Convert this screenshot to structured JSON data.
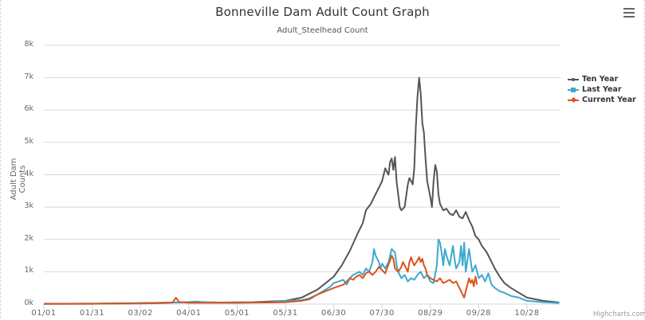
{
  "header": {
    "title": "Bonneville Dam Adult Count Graph",
    "subtitle": "Adult_Steelhead Count",
    "menu_icon": "hamburger-menu-icon"
  },
  "credits": "Highcharts.com",
  "chart_data": {
    "type": "line",
    "title": "Bonneville Dam Adult Count Graph",
    "subtitle": "Adult_Steelhead Count",
    "xlabel": "",
    "ylabel": "Adult Dam Counts",
    "ylim": [
      0,
      8000
    ],
    "y_ticks": [
      "0k",
      "1k",
      "2k",
      "3k",
      "4k",
      "5k",
      "6k",
      "7k",
      "8k"
    ],
    "x_ticks": [
      "01/01",
      "01/31",
      "03/02",
      "04/01",
      "05/01",
      "05/31",
      "06/30",
      "07/30",
      "08/29",
      "09/28",
      "10/28"
    ],
    "x_tick_days": [
      0,
      30,
      60,
      90,
      120,
      150,
      180,
      210,
      240,
      270,
      300
    ],
    "x_range_days": [
      0,
      320
    ],
    "grid": true,
    "legend_position": "right",
    "series": [
      {
        "name": "Ten Year",
        "color": "#555555",
        "points": [
          [
            0,
            10
          ],
          [
            30,
            15
          ],
          [
            60,
            30
          ],
          [
            80,
            50
          ],
          [
            90,
            60
          ],
          [
            110,
            50
          ],
          [
            130,
            60
          ],
          [
            150,
            100
          ],
          [
            160,
            200
          ],
          [
            170,
            450
          ],
          [
            180,
            850
          ],
          [
            185,
            1200
          ],
          [
            190,
            1650
          ],
          [
            195,
            2200
          ],
          [
            198,
            2500
          ],
          [
            200,
            2900
          ],
          [
            203,
            3100
          ],
          [
            205,
            3300
          ],
          [
            208,
            3600
          ],
          [
            210,
            3800
          ],
          [
            212,
            4200
          ],
          [
            214,
            4000
          ],
          [
            215,
            4400
          ],
          [
            216,
            4500
          ],
          [
            217,
            4150
          ],
          [
            218,
            4550
          ],
          [
            219,
            3800
          ],
          [
            220,
            3400
          ],
          [
            221,
            3000
          ],
          [
            222,
            2900
          ],
          [
            224,
            3000
          ],
          [
            226,
            3700
          ],
          [
            227,
            3900
          ],
          [
            228,
            3800
          ],
          [
            229,
            3700
          ],
          [
            230,
            4200
          ],
          [
            231,
            5500
          ],
          [
            232,
            6400
          ],
          [
            233,
            7000
          ],
          [
            234,
            6500
          ],
          [
            235,
            5600
          ],
          [
            236,
            5300
          ],
          [
            237,
            4500
          ],
          [
            238,
            3800
          ],
          [
            240,
            3300
          ],
          [
            241,
            3000
          ],
          [
            242,
            3800
          ],
          [
            243,
            4300
          ],
          [
            244,
            4100
          ],
          [
            245,
            3400
          ],
          [
            246,
            3100
          ],
          [
            248,
            2900
          ],
          [
            250,
            2950
          ],
          [
            252,
            2800
          ],
          [
            254,
            2750
          ],
          [
            256,
            2900
          ],
          [
            258,
            2700
          ],
          [
            260,
            2650
          ],
          [
            262,
            2850
          ],
          [
            264,
            2600
          ],
          [
            266,
            2400
          ],
          [
            268,
            2100
          ],
          [
            270,
            2000
          ],
          [
            272,
            1800
          ],
          [
            275,
            1600
          ],
          [
            278,
            1300
          ],
          [
            280,
            1100
          ],
          [
            283,
            850
          ],
          [
            286,
            650
          ],
          [
            290,
            500
          ],
          [
            295,
            350
          ],
          [
            300,
            200
          ],
          [
            305,
            150
          ],
          [
            310,
            100
          ],
          [
            320,
            50
          ]
        ]
      },
      {
        "name": "Last Year",
        "color": "#3ca9d0",
        "points": [
          [
            0,
            5
          ],
          [
            30,
            10
          ],
          [
            50,
            20
          ],
          [
            65,
            30
          ],
          [
            75,
            40
          ],
          [
            85,
            50
          ],
          [
            95,
            80
          ],
          [
            100,
            60
          ],
          [
            120,
            40
          ],
          [
            140,
            60
          ],
          [
            150,
            100
          ],
          [
            160,
            120
          ],
          [
            165,
            180
          ],
          [
            170,
            300
          ],
          [
            175,
            450
          ],
          [
            178,
            550
          ],
          [
            180,
            650
          ],
          [
            183,
            700
          ],
          [
            186,
            750
          ],
          [
            188,
            600
          ],
          [
            190,
            800
          ],
          [
            192,
            900
          ],
          [
            194,
            950
          ],
          [
            196,
            1000
          ],
          [
            198,
            900
          ],
          [
            200,
            1100
          ],
          [
            202,
            1000
          ],
          [
            204,
            1300
          ],
          [
            205,
            1700
          ],
          [
            206,
            1500
          ],
          [
            207,
            1400
          ],
          [
            208,
            1300
          ],
          [
            209,
            1100
          ],
          [
            210,
            1250
          ],
          [
            212,
            1100
          ],
          [
            214,
            1300
          ],
          [
            216,
            1700
          ],
          [
            218,
            1600
          ],
          [
            219,
            1200
          ],
          [
            220,
            1000
          ],
          [
            222,
            800
          ],
          [
            224,
            900
          ],
          [
            226,
            700
          ],
          [
            228,
            800
          ],
          [
            230,
            750
          ],
          [
            232,
            900
          ],
          [
            234,
            1000
          ],
          [
            236,
            800
          ],
          [
            238,
            900
          ],
          [
            240,
            700
          ],
          [
            242,
            650
          ],
          [
            244,
            1200
          ],
          [
            245,
            2000
          ],
          [
            246,
            1900
          ],
          [
            247,
            1600
          ],
          [
            248,
            1200
          ],
          [
            249,
            1700
          ],
          [
            250,
            1500
          ],
          [
            252,
            1200
          ],
          [
            254,
            1800
          ],
          [
            255,
            1400
          ],
          [
            256,
            1100
          ],
          [
            258,
            1300
          ],
          [
            259,
            1800
          ],
          [
            260,
            1200
          ],
          [
            261,
            1900
          ],
          [
            262,
            1000
          ],
          [
            264,
            1700
          ],
          [
            266,
            1000
          ],
          [
            268,
            1200
          ],
          [
            270,
            800
          ],
          [
            272,
            900
          ],
          [
            274,
            700
          ],
          [
            276,
            950
          ],
          [
            278,
            600
          ],
          [
            280,
            500
          ],
          [
            283,
            400
          ],
          [
            286,
            350
          ],
          [
            290,
            250
          ],
          [
            295,
            200
          ],
          [
            300,
            100
          ],
          [
            305,
            80
          ],
          [
            310,
            60
          ],
          [
            320,
            30
          ]
        ]
      },
      {
        "name": "Current Year",
        "color": "#d9541c",
        "points": [
          [
            0,
            5
          ],
          [
            30,
            10
          ],
          [
            60,
            20
          ],
          [
            75,
            30
          ],
          [
            80,
            50
          ],
          [
            82,
            200
          ],
          [
            84,
            60
          ],
          [
            90,
            40
          ],
          [
            110,
            40
          ],
          [
            140,
            50
          ],
          [
            150,
            60
          ],
          [
            155,
            80
          ],
          [
            160,
            100
          ],
          [
            165,
            150
          ],
          [
            170,
            300
          ],
          [
            175,
            400
          ],
          [
            180,
            500
          ],
          [
            183,
            550
          ],
          [
            186,
            600
          ],
          [
            188,
            700
          ],
          [
            190,
            800
          ],
          [
            192,
            750
          ],
          [
            194,
            850
          ],
          [
            196,
            900
          ],
          [
            198,
            800
          ],
          [
            200,
            950
          ],
          [
            202,
            1000
          ],
          [
            204,
            900
          ],
          [
            206,
            1000
          ],
          [
            208,
            1150
          ],
          [
            210,
            1050
          ],
          [
            212,
            950
          ],
          [
            213,
            1100
          ],
          [
            215,
            1350
          ],
          [
            216,
            1500
          ],
          [
            217,
            1400
          ],
          [
            218,
            1100
          ],
          [
            220,
            1000
          ],
          [
            222,
            1150
          ],
          [
            223,
            1300
          ],
          [
            224,
            1200
          ],
          [
            226,
            1000
          ],
          [
            227,
            1300
          ],
          [
            228,
            1450
          ],
          [
            229,
            1300
          ],
          [
            230,
            1200
          ],
          [
            232,
            1350
          ],
          [
            233,
            1450
          ],
          [
            234,
            1300
          ],
          [
            235,
            1400
          ],
          [
            236,
            1200
          ],
          [
            237,
            1100
          ],
          [
            238,
            900
          ],
          [
            240,
            800
          ],
          [
            242,
            750
          ],
          [
            244,
            700
          ],
          [
            246,
            800
          ],
          [
            248,
            650
          ],
          [
            250,
            700
          ],
          [
            252,
            750
          ],
          [
            254,
            650
          ],
          [
            256,
            700
          ],
          [
            258,
            500
          ],
          [
            260,
            300
          ],
          [
            261,
            200
          ],
          [
            262,
            400
          ],
          [
            264,
            800
          ],
          [
            265,
            650
          ],
          [
            266,
            750
          ],
          [
            267,
            550
          ],
          [
            268,
            850
          ],
          [
            269,
            600
          ]
        ]
      }
    ]
  }
}
